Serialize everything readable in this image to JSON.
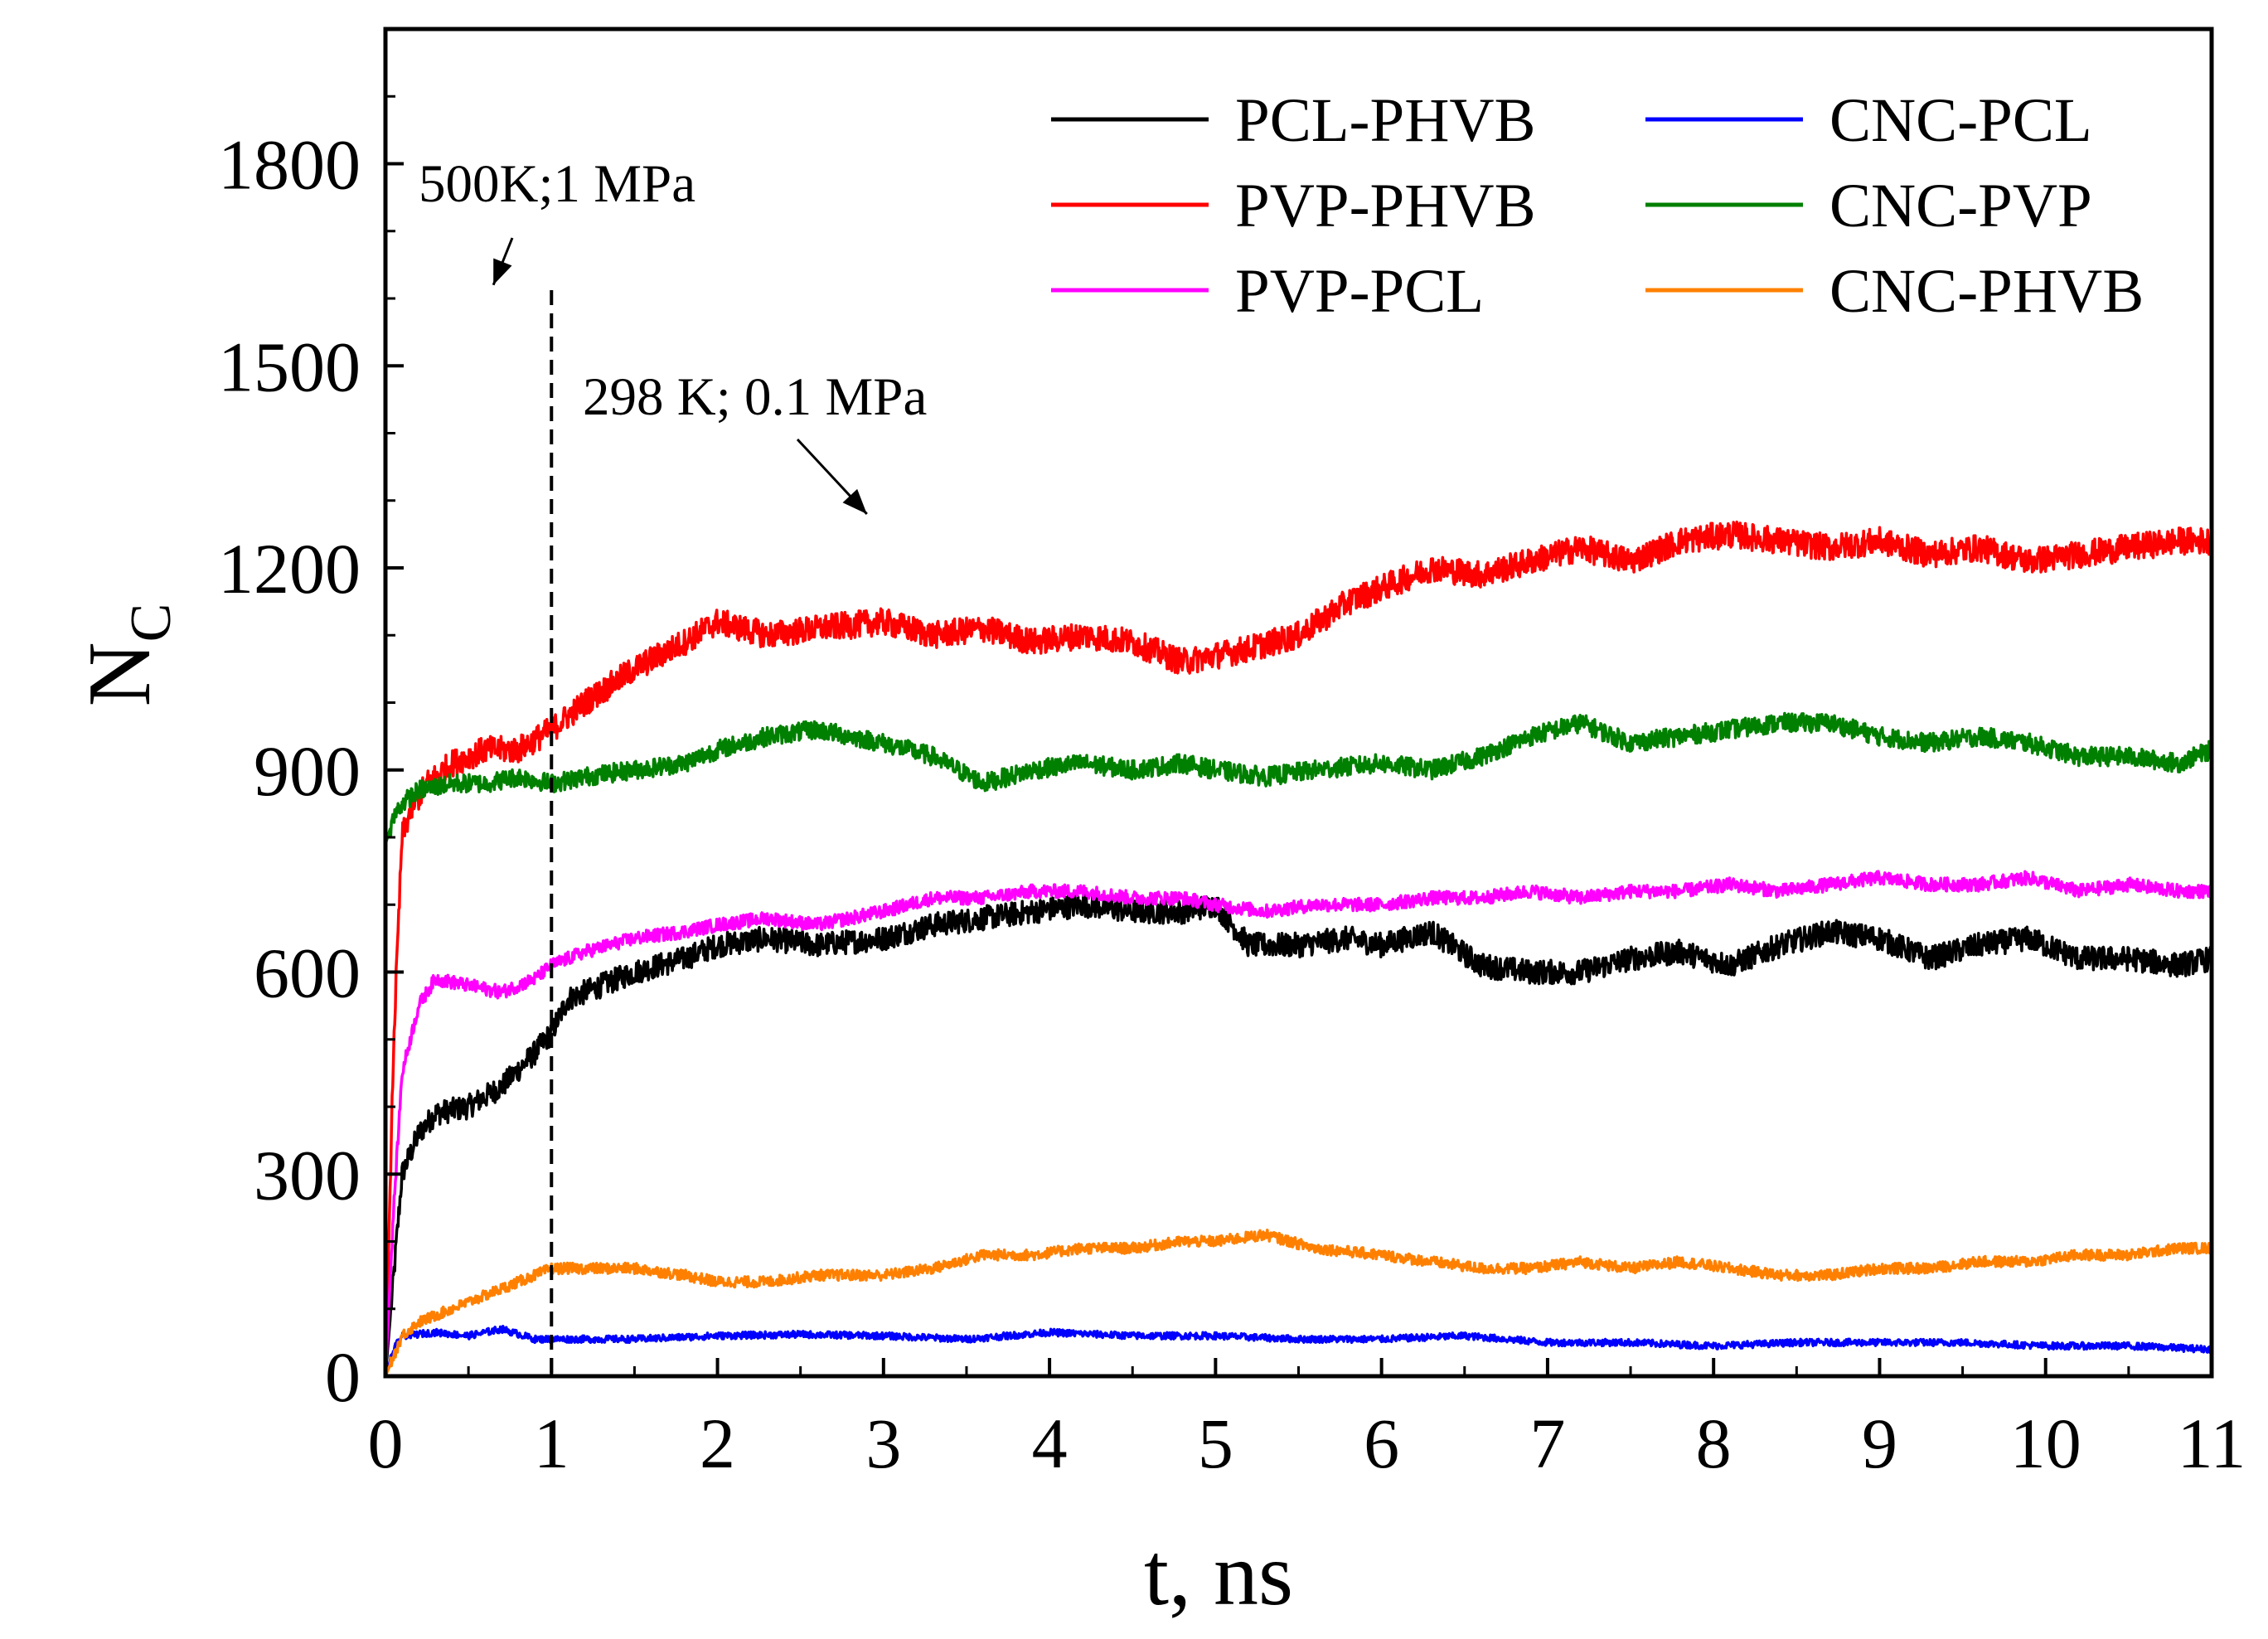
{
  "chart_data": {
    "type": "line",
    "title": "",
    "xlabel": "t, ns",
    "ylabel": "N",
    "ylabel_subscript": "C",
    "xlim": [
      0,
      11
    ],
    "ylim": [
      0,
      2000
    ],
    "xticks": [
      0,
      1,
      2,
      3,
      4,
      5,
      6,
      7,
      8,
      9,
      10,
      11
    ],
    "yticks": [
      0,
      300,
      600,
      900,
      1200,
      1500,
      1800
    ],
    "grid": false,
    "legend_position": "top-right",
    "annotations": [
      {
        "text": "500K;1 MPa",
        "arrow_to": [
          0.65,
          1620
        ]
      },
      {
        "text": "298 K; 0.1 MPa",
        "arrow_to": [
          2.9,
          1280
        ]
      }
    ],
    "vline": {
      "x": 1,
      "style": "dashed"
    },
    "series": [
      {
        "name": "PCL-PHVB",
        "color": "#000000",
        "x": [
          0,
          0.05,
          0.1,
          0.2,
          0.3,
          0.5,
          0.7,
          0.9,
          1.0,
          1.1,
          1.3,
          1.5,
          1.8,
          2.0,
          2.3,
          2.6,
          3.0,
          3.3,
          3.6,
          3.9,
          4.2,
          4.5,
          4.8,
          5.0,
          5.2,
          5.5,
          5.8,
          6.0,
          6.3,
          6.6,
          6.9,
          7.2,
          7.5,
          7.8,
          8.1,
          8.4,
          8.7,
          9.0,
          9.3,
          9.6,
          9.9,
          10.2,
          10.5,
          10.8,
          11.0
        ],
        "y": [
          0,
          150,
          300,
          360,
          390,
          400,
          430,
          480,
          510,
          560,
          580,
          600,
          620,
          640,
          650,
          640,
          650,
          670,
          680,
          690,
          700,
          690,
          690,
          700,
          640,
          640,
          650,
          640,
          660,
          610,
          600,
          600,
          620,
          630,
          610,
          640,
          660,
          650,
          620,
          640,
          650,
          620,
          620,
          610,
          620
        ]
      },
      {
        "name": "PVP-PHVB",
        "color": "#ff0000",
        "x": [
          0,
          0.05,
          0.1,
          0.15,
          0.25,
          0.4,
          0.6,
          0.8,
          1.0,
          1.2,
          1.5,
          1.8,
          2.0,
          2.3,
          2.6,
          3.0,
          3.3,
          3.6,
          3.9,
          4.2,
          4.5,
          4.8,
          5.0,
          5.2,
          5.5,
          5.8,
          6.0,
          6.3,
          6.6,
          6.9,
          7.2,
          7.5,
          7.8,
          8.1,
          8.4,
          8.7,
          9.0,
          9.3,
          9.6,
          9.9,
          10.2,
          10.5,
          10.8,
          11.0
        ],
        "y": [
          0,
          500,
          800,
          840,
          880,
          910,
          930,
          930,
          960,
          1000,
          1050,
          1090,
          1120,
          1100,
          1110,
          1120,
          1100,
          1110,
          1090,
          1100,
          1090,
          1060,
          1070,
          1080,
          1100,
          1150,
          1170,
          1200,
          1190,
          1210,
          1230,
          1210,
          1240,
          1250,
          1240,
          1230,
          1240,
          1220,
          1230,
          1210,
          1220,
          1230,
          1240,
          1240
        ]
      },
      {
        "name": "PVP-PCL",
        "color": "#ff00ff",
        "x": [
          0,
          0.05,
          0.1,
          0.2,
          0.3,
          0.5,
          0.7,
          0.9,
          1.0,
          1.2,
          1.5,
          1.8,
          2.0,
          2.3,
          2.6,
          3.0,
          3.3,
          3.6,
          3.9,
          4.2,
          4.5,
          4.8,
          5.0,
          5.3,
          5.6,
          6.0,
          6.3,
          6.6,
          6.9,
          7.2,
          7.5,
          7.8,
          8.1,
          8.4,
          8.7,
          9.0,
          9.3,
          9.6,
          9.9,
          10.2,
          10.5,
          10.8,
          11.0
        ],
        "y": [
          0,
          250,
          450,
          550,
          590,
          580,
          570,
          590,
          610,
          630,
          650,
          660,
          670,
          680,
          670,
          690,
          710,
          710,
          720,
          720,
          710,
          710,
          700,
          690,
          700,
          700,
          710,
          710,
          720,
          710,
          720,
          720,
          730,
          720,
          730,
          740,
          730,
          730,
          740,
          720,
          730,
          720,
          720
        ]
      },
      {
        "name": "CNC-PCL",
        "color": "#0000ff",
        "x": [
          0,
          0.05,
          0.1,
          0.3,
          0.5,
          0.7,
          0.9,
          1.0,
          1.5,
          2.0,
          2.5,
          3.0,
          3.5,
          4.0,
          4.5,
          5.0,
          5.5,
          6.0,
          6.5,
          7.0,
          7.5,
          8.0,
          8.5,
          9.0,
          9.5,
          10.0,
          10.5,
          11.0
        ],
        "y": [
          0,
          40,
          60,
          65,
          60,
          70,
          55,
          55,
          55,
          60,
          62,
          60,
          55,
          65,
          60,
          60,
          55,
          55,
          60,
          50,
          50,
          45,
          50,
          50,
          50,
          45,
          45,
          40
        ]
      },
      {
        "name": "CNC-PVP",
        "color": "#008000",
        "x": [
          0,
          0.05,
          0.1,
          0.2,
          0.4,
          0.6,
          0.8,
          1.0,
          1.2,
          1.5,
          1.8,
          2.0,
          2.3,
          2.6,
          3.0,
          3.3,
          3.6,
          3.9,
          4.2,
          4.5,
          4.8,
          5.0,
          5.3,
          5.6,
          6.0,
          6.3,
          6.6,
          6.9,
          7.2,
          7.5,
          7.8,
          8.1,
          8.4,
          8.7,
          9.0,
          9.3,
          9.6,
          9.9,
          10.2,
          10.5,
          10.8,
          11.0
        ],
        "y": [
          790,
          830,
          850,
          870,
          880,
          880,
          890,
          880,
          890,
          900,
          910,
          930,
          950,
          960,
          940,
          920,
          880,
          900,
          910,
          900,
          910,
          900,
          890,
          900,
          910,
          900,
          920,
          950,
          970,
          940,
          950,
          960,
          970,
          970,
          950,
          940,
          950,
          940,
          920,
          920,
          910,
          930
        ]
      },
      {
        "name": "CNC-PHVB",
        "color": "#ff8000",
        "x": [
          0,
          0.1,
          0.2,
          0.4,
          0.6,
          0.8,
          1.0,
          1.2,
          1.5,
          1.8,
          2.0,
          2.3,
          2.6,
          3.0,
          3.3,
          3.6,
          3.9,
          4.2,
          4.5,
          4.8,
          5.0,
          5.3,
          5.6,
          6.0,
          6.3,
          6.6,
          6.9,
          7.2,
          7.5,
          7.8,
          8.1,
          8.4,
          8.7,
          9.0,
          9.3,
          9.6,
          9.9,
          10.2,
          10.5,
          10.8,
          11.0
        ],
        "y": [
          0,
          60,
          80,
          100,
          120,
          140,
          160,
          160,
          160,
          150,
          140,
          140,
          150,
          150,
          160,
          180,
          180,
          190,
          190,
          200,
          200,
          210,
          190,
          180,
          170,
          160,
          160,
          170,
          160,
          170,
          160,
          150,
          150,
          160,
          160,
          170,
          170,
          180,
          180,
          190,
          190
        ]
      }
    ]
  }
}
